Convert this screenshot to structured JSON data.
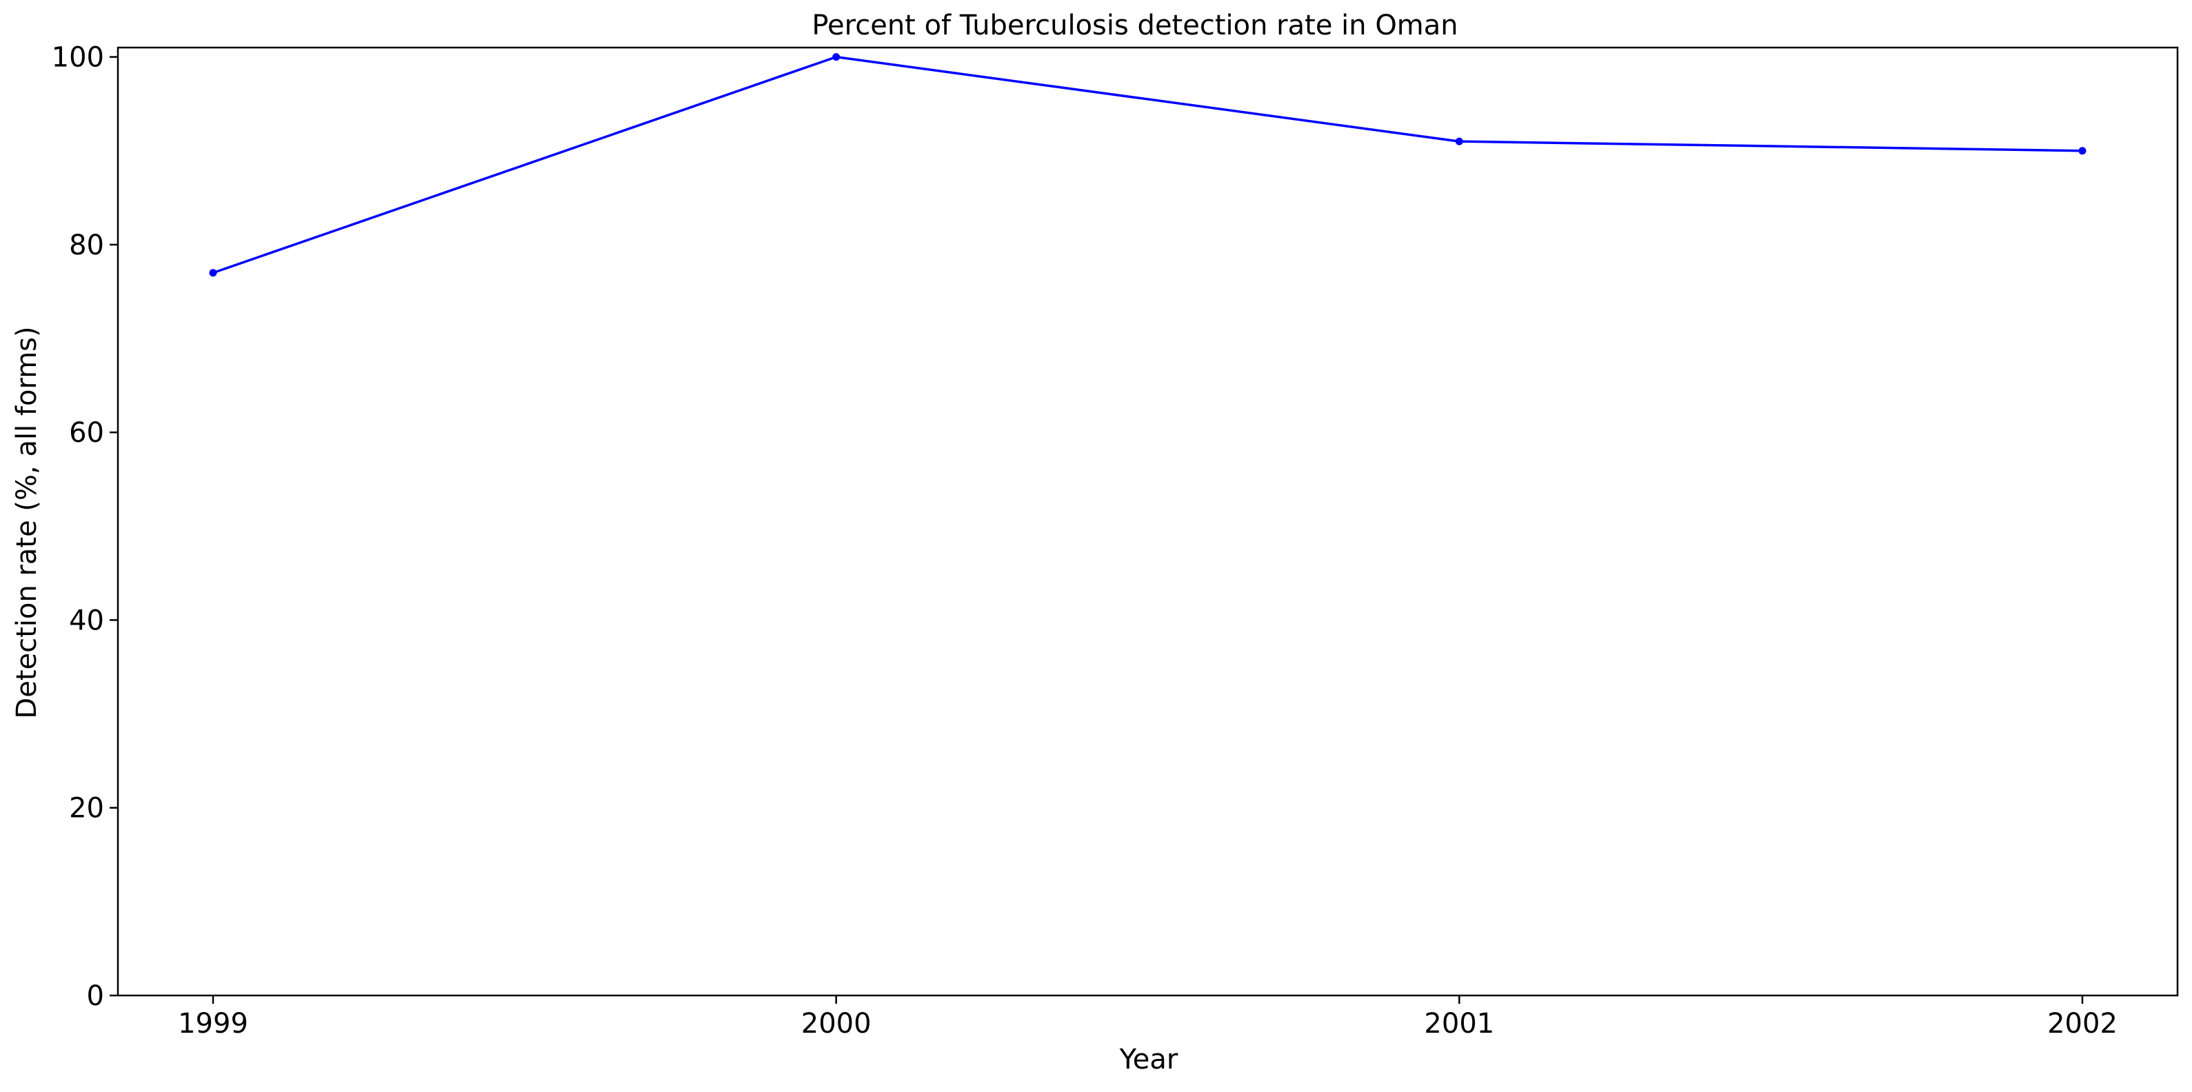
{
  "chart_data": {
    "type": "line",
    "title": "Percent of Tuberculosis detection rate in Oman",
    "xlabel": "Year",
    "ylabel": "Detection rate (%, all forms)",
    "x": [
      "1999",
      "2000",
      "2001",
      "2002"
    ],
    "y_ticks": [
      0,
      20,
      40,
      60,
      80,
      100
    ],
    "ylim": [
      0,
      101
    ],
    "grid": false,
    "legend": "none",
    "series": [
      {
        "values": [
          77,
          100,
          91,
          90
        ],
        "color": "#0000ff",
        "marker": "dot"
      }
    ]
  }
}
